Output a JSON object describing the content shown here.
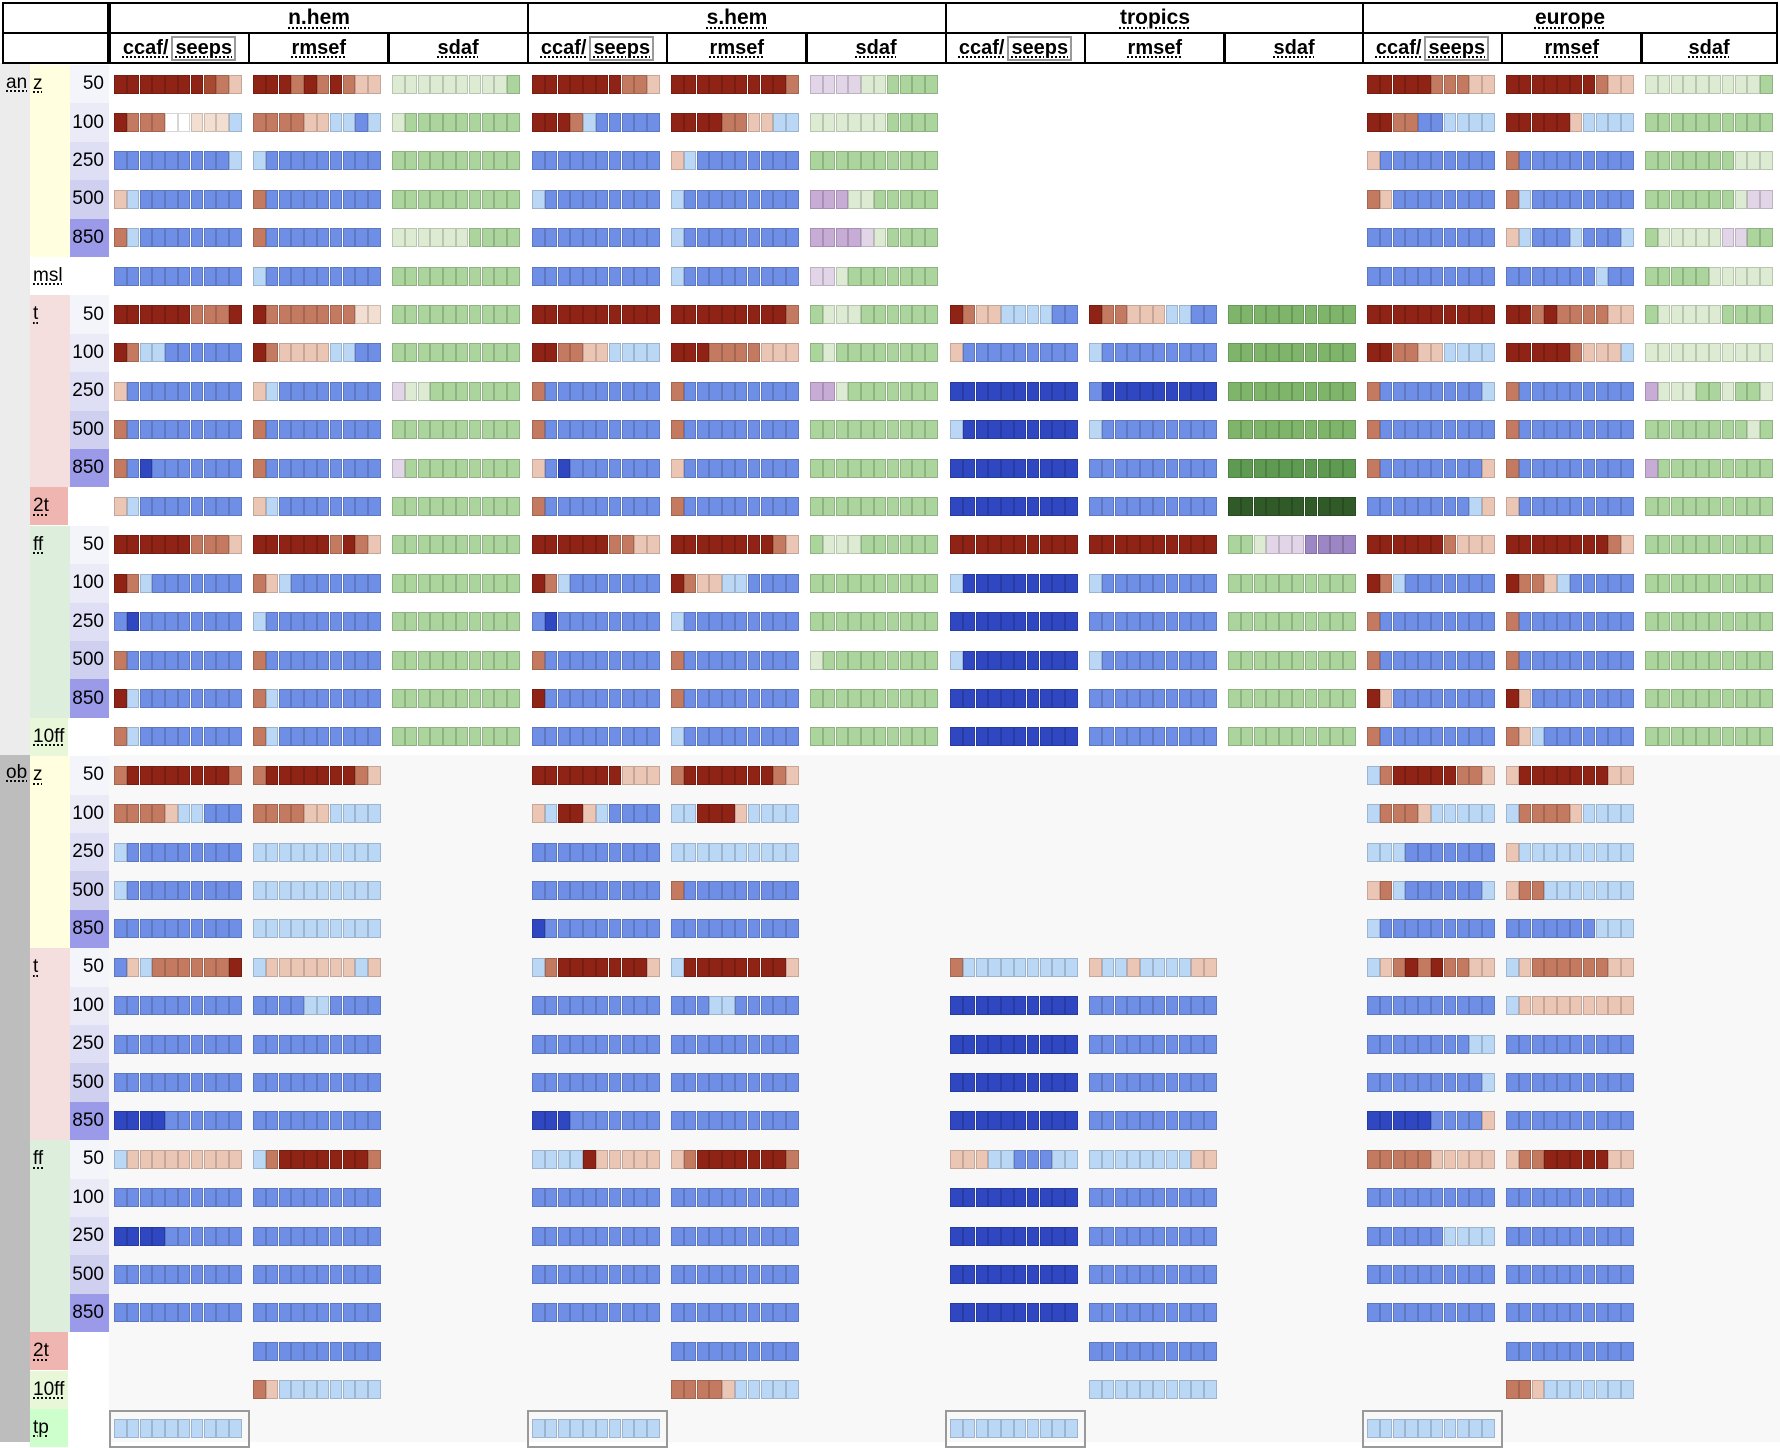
{
  "regions": [
    {
      "label": "n.hem"
    },
    {
      "label": "s.hem"
    },
    {
      "label": "tropics"
    },
    {
      "label": "europe"
    }
  ],
  "column_headers": {
    "ccaf": "ccaf/",
    "seeps": "seeps",
    "rmsef": "rmsef",
    "sdaf": "sdaf"
  },
  "sections": [
    {
      "label": "an"
    },
    {
      "label": "ob"
    }
  ],
  "groups": [
    {
      "param": "z",
      "levels": [
        "50",
        "100",
        "250",
        "500",
        "850"
      ]
    },
    {
      "param": "msl",
      "levels": []
    },
    {
      "param": "t",
      "levels": [
        "50",
        "100",
        "250",
        "500",
        "850"
      ]
    },
    {
      "param": "2t",
      "levels": []
    },
    {
      "param": "ff",
      "levels": [
        "50",
        "100",
        "250",
        "500",
        "850"
      ]
    },
    {
      "param": "10ff",
      "levels": []
    },
    {
      "param": "tp",
      "levels": []
    }
  ],
  "colors": {
    "param_z": "#ffffe0",
    "param_t": "#f5dede",
    "param_ff": "#ddeedd",
    "param_tp": "#ccffcc",
    "level_base": "#ebebf7",
    "level_850": "#9a9ae8",
    "section_an": "#ececec",
    "section_ob": "#bdbdbd",
    "scorecard_bg": "#f8f8f8"
  },
  "scorecard": {
    "an": {
      "ccaf": [
        [
          "RRRRRRRQrl",
          "RrrrqqLLLb",
          "BBBBBBBBBb",
          "lbBBBBBBBB",
          "rbBBBBBBBB",
          "BBBBBBBBBB",
          "RRRRRRrrrR",
          "RrbbBBBBBB",
          "lBBBBBBBBB",
          "rBBBBBBBBB",
          "rBCBBBBBBB",
          "lbBBBBBBBB",
          "RRRRRRrrrl",
          "RrbBBBBBBB",
          "BCBBBBBBBB",
          "rBBBBBBBBB",
          "RbBBBBBBBB",
          "rbBBBBBBBB"
        ],
        [
          "RRRRRRRrrl",
          "RRRrbBBBBB",
          "BBBBBBBBBB",
          "bBBBBBBBBB",
          "BBBBBBBBBB",
          "BBBBBBBBBB",
          "RRRRRRRRRR",
          "RRrrllbbbb",
          "rBBBBBBBBB",
          "rBBBBBBBBB",
          "lBCBBBBBBB",
          "rBBBBBBBBB",
          "RRRRRRrrll",
          "RrbBBBBBBB",
          "BCBBBBBBBB",
          "rBBBBBBBBB",
          "RBBBBBBBBB",
          "BBBBBBBBBB"
        ],
        [
          "",
          "",
          "",
          "",
          "",
          "",
          "RrllbbbbBB",
          "lBBBBBBBBB",
          "CCCCCCCCCC",
          "bCCCCCCCCC",
          "CCCCCCCCCC",
          "CCCCCCCCCC",
          "RRRRRRRRRR",
          "bCCCCCCCCC",
          "CCCCCCCCCC",
          "bCCCCCCCCC",
          "CCCCCCCCCC",
          "CCCCCCCCCC"
        ],
        [
          "RRRRRrrrll",
          "RRrrBBbbbb",
          "lBBBBBBBBB",
          "rlBBBBBBBB",
          "BBBBBBBBBB",
          "BBBBBBBBBB",
          "RRRRRRRRRR",
          "RRrrllbbbb",
          "rBBBBBBBBb",
          "rBBBBBBBBB",
          "rBBBBBBBBl",
          "BBBBBBBBbl",
          "RRRRRRrlll",
          "RrbBBBBBBB",
          "rBBBBBBBBB",
          "rBBBBBBBBB",
          "RlBBBBBBBB",
          "rBBBBBBBBB"
        ]
      ],
      "rmsef": [
        [
          "RRRrRrRrll",
          "rrrrllbbBb",
          "bBBBBBBBBB",
          "rBBBBBBBBB",
          "rBBBBBBBBB",
          "bBBBBBBBBB",
          "RrrrrrrrLL",
          "RrllllbbBB",
          "lbBBBBBBBB",
          "rBBBBBBBBB",
          "rBBBBBBBBB",
          "lbBBBBBBBB",
          "RRRRRRrRrl",
          "rlbBBBBBBB",
          "bBBBBBBBBB",
          "rBBBBBBBBB",
          "rbBBBBBBBB",
          "rbBBBBBBBB"
        ],
        [
          "RRRRRRRRRr",
          "RRRRrrllbb",
          "lbBBBBBBBB",
          "bBBBBBBBBB",
          "bBBBBBBBBB",
          "bBBBBBBBBB",
          "RRRRRRRRRr",
          "RRRrrrrlll",
          "rBBBBBBBBB",
          "rBBBBBBBBB",
          "lBBBBBBBBB",
          "rBBBBBBBBB",
          "RRRRRRRRrl",
          "RrllbbBBBB",
          "bBBBBBBBBB",
          "rBBBBBBBBB",
          "rBBBBBBBBB",
          "bBBBBBBBBB"
        ],
        [
          "",
          "",
          "",
          "",
          "",
          "",
          "RrrlllbbBB",
          "bBBBBBBBBB",
          "BCCCCCCCCC",
          "bBBBBBBBBB",
          "BBBBBBBBBB",
          "BBBBBBBBBB",
          "RRRRRRRRRR",
          "bBBBBBBBBB",
          "BBBBBBBBBB",
          "bBBBBBBBBB",
          "BBBBBBBBBB",
          "BBBBBBBBBB"
        ],
        [
          "RRRRRRRrll",
          "RRRRRlbbbb",
          "rBBBBBBBBB",
          "rbBBBBBBBB",
          "lbBBBbBBBb",
          "BBBBBBBbBB",
          "RRrRrrrrll",
          "RRRRRrlllb",
          "rBBBBBBBBB",
          "rBBBBBBBBB",
          "rBBBBBBBBB",
          "lBBBBBBBBB",
          "RRRRRRRRrl",
          "RrrlbBBBBB",
          "rBBBBBBBBB",
          "rBBBBBBBBB",
          "RlBBBBBBBB",
          "rlbBBBBBBB"
        ]
      ],
      "sdaf": [
        [
          "gggggggggG",
          "gGGGGGGGGG",
          "GGGGGGGGGG",
          "GGGGGGGGGG",
          "ggggggGGGG",
          "GGGGGGGGGG",
          "GGGGGGGGGG",
          "GGGGGGGGGG",
          "pggGGGGGGG",
          "GGGGGGGGGG",
          "pGGGGGGGGG",
          "GGGGGGGGGG",
          "GGGGGGGGGG",
          "GGGGGGGGGG",
          "GGGGGGGGGG",
          "GGGGGGGGGG",
          "GGGGGGGGGG",
          "GGGGGGGGGG"
        ],
        [
          "ppppggGGGG",
          "ggggggGGGG",
          "GGGGGGGGGG",
          "PPPggGGGGG",
          "PPPPpgGGGG",
          "ppgGGGGGGG",
          "GgggGGGGGG",
          "GgGGGGGGGG",
          "PPgGGGGGGG",
          "GGGGGGGGGG",
          "GGGGGGGGGG",
          "GGGGGGGGGG",
          "GgggGGGGGG",
          "GGGGGGGGGG",
          "GGGGGGGGGG",
          "gGGGGGGGGG",
          "GGGGGGGGGG",
          "GGGGGGGGGG"
        ],
        [
          "",
          "",
          "",
          "",
          "",
          "",
          "HHHHHHHHHH",
          "HHHHHHHHHH",
          "HHHHHHHHHH",
          "HHHHHHHHHH",
          "DDDDDDDDDD",
          "EEEEEEEEEE",
          "GGgpppVVVV",
          "GGGGGGGGGG",
          "GGGGGGGGGG",
          "GGGGGGGGGG",
          "GGGGGGGGGG",
          "GGGGGGGGGG"
        ],
        [
          "gggggggggG",
          "GGGGGGGGGG",
          "GGGGGGGggg",
          "GGGGGGGgpp",
          "GgggggppGG",
          "GGGGGggggg",
          "GgggggGGGG",
          "gggggggggg",
          "PgggGGgGGg",
          "GGGGGGGGgG",
          "PGGGGGGGGG",
          "GGGGGGGGGG",
          "GGGGGGGGGG",
          "GGGGGGGGGG",
          "GGGGGGGGGG",
          "GGGGGGGGGG",
          "GGGGGGGGGG",
          "GGGGGGGGGG"
        ]
      ]
    },
    "ob": {
      "ccaf": [
        [
          "rRRRRRRRRr",
          "rrrrlbbBBB",
          "bBBBBBBBBB",
          "bBBBBBBBBB",
          "BBBBBBBBBB",
          "BlbrrrrrrR",
          "BBBBBBBBBB",
          "BBBBBBBBBB",
          "BBBBBBBBBB",
          "CCCCBBBBBB",
          "blllllllll",
          "BBBBBBBBBB",
          "CCCCBBBBBB",
          "BBBBBBBBBB",
          "BBBBBBBBBB",
          "",
          "",
          "bbbbbbbbbb"
        ],
        [
          "RRRRRRRlll",
          "lbRRlbBBBB",
          "BBBBBBBBBB",
          "BBBBBBBBBB",
          "CBBBBBBBBB",
          "brRRRRRRRl",
          "BBBBBBBBBB",
          "BBBBBBBBBB",
          "BBBBBBBBBB",
          "CCCBBBBBBB",
          "bbbbRlllll",
          "BBBBBBBBBB",
          "BBBBBBBBBB",
          "BBBBBBBBBB",
          "BBBBBBBBBB",
          "",
          "",
          "bbbbbbbbbb"
        ],
        [
          "",
          "",
          "",
          "",
          "",
          "rbbbbbbbbb",
          "CCCCCCCCCC",
          "CCCCCCCCCC",
          "CCCCCCCCCC",
          "CCCCCCCCCC",
          "lllbbBBBbb",
          "CCCCCCCCCC",
          "CCCCCCCCCC",
          "CCCCCCCCCC",
          "CCCCCCCCCC",
          "",
          "",
          "bbbbbbbbbb"
        ],
        [
          "brRRRRRrrl",
          "brrrlbbbbb",
          "bbbBBBBBBB",
          "lrbBBBBBBb",
          "bBBBBBBBBB",
          "blrRrRrrll",
          "BBBBBBBBBB",
          "BBBBBBBBbb",
          "BBBBBBBBBb",
          "CCCCCBBBBl",
          "rrrrrlllll",
          "BBBBBBBBBB",
          "BBBBBBbbbb",
          "BBBBBBBBBB",
          "BBBBBBBBBB",
          "",
          "",
          "bbbbbbbbbb"
        ]
      ],
      "rmsef": [
        [
          "rRRRRRRRrl",
          "rrrrllbbbb",
          "bbbbbbbbbb",
          "bbbbbbbbbb",
          "bbbbbbbbbb",
          "blllllllbl",
          "BBBBbbBBBB",
          "BBBBBBBBBB",
          "BBBBBBBBBB",
          "BBBBBBBBBB",
          "brRRRRRRRr",
          "BBBBBBBBBB",
          "BBBBBBBBBB",
          "BBBBBBBBBB",
          "BBBBBBBBBB",
          "BBBBBBBBBB",
          "rlbbbbbbbb",
          ""
        ],
        [
          "rRRRRRRRrl",
          "bbRRRlbbbb",
          "bbbbbbbbbb",
          "rBBBBBBBBB",
          "BBBBBBBBBB",
          "bRRRRRRRRl",
          "BBBbbBBBBB",
          "BBBBBBBBBB",
          "BBBBBBBBBB",
          "BBBBBBBBBB",
          "lrRRRRRRRr",
          "BBBBBBBBBB",
          "BBBBBBBBBB",
          "BBBBBBBBBB",
          "BBBBBBBBBB",
          "BBBBBBBBBB",
          "rrrrlbbbbb",
          ""
        ],
        [
          "",
          "",
          "",
          "",
          "",
          "lbblbbbbll",
          "BBBBBBBBBB",
          "BBBBBBBBBB",
          "BBBBBBBBBB",
          "BBBBBBBBBB",
          "bbbbbbbbll",
          "BBBBBBBBBB",
          "BBBBBBBBBB",
          "BBBBBBBBBB",
          "BBBBBBBBBB",
          "BBBBBBBBBB",
          "bbbbbbbbbb",
          ""
        ],
        [
          "lRRRRRRRll",
          "brrrrlbbbb",
          "lbbbbbbbbb",
          "lrrbbbbbbb",
          "BBBBBBBbbb",
          "blrrrrrrll",
          "blllllllll",
          "BBBBBBBBBB",
          "BBBBBBBBBB",
          "BBBBBBBBBB",
          "lrrRRRRRll",
          "BBBBBBBBBB",
          "BBBBBBBBBB",
          "BBBBBBBBBB",
          "BBBBBBBBBB",
          "BBBBBBBBBB",
          "rrlbbbbbbb",
          ""
        ]
      ]
    }
  }
}
